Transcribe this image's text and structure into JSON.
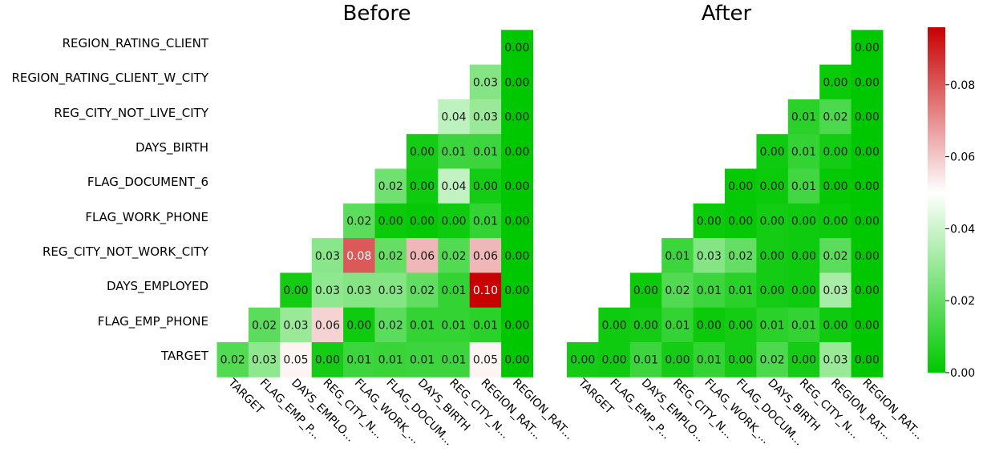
{
  "chart_data": {
    "type": "heatmap",
    "labels_full": [
      "TARGET",
      "FLAG_EMP_PHONE",
      "DAYS_EMPLOYED",
      "REG_CITY_NOT_WORK_CITY",
      "FLAG_WORK_PHONE",
      "FLAG_DOCUMENT_6",
      "DAYS_BIRTH",
      "REG_CITY_NOT_LIVE_CITY",
      "REGION_RATING_CLIENT_W_CITY",
      "REGION_RATING_CLIENT"
    ],
    "labels_short": [
      "TARGET",
      "FLAG_EMP_P...",
      "DAYS_EMPLO...",
      "REG_CITY_N...",
      "FLAG_WORK_...",
      "FLAG_DOCUM...",
      "DAYS_BIRTH",
      "REG_CITY_N...",
      "REGION_RAT...",
      "REGION_RAT..."
    ],
    "colorscale": [
      "#00c800",
      "#ffffff",
      "#c80000"
    ],
    "vmin": 0,
    "vmax": 0.096,
    "colorbar_ticks": [
      "0.00",
      "0.02",
      "0.04",
      "0.06",
      "0.08"
    ],
    "panels": [
      {
        "title": "Before",
        "rows": [
          [
            "0.00"
          ],
          [
            "0.03",
            "0.00"
          ],
          [
            "0.04",
            "0.03",
            "0.00"
          ],
          [
            "0.00",
            "0.01",
            "0.01",
            "0.00"
          ],
          [
            "0.02",
            "0.00",
            "0.04",
            "0.00",
            "0.00"
          ],
          [
            "0.02",
            "0.00",
            "0.00",
            "0.00",
            "0.01",
            "0.00"
          ],
          [
            "0.03",
            "0.08",
            "0.02",
            "0.06",
            "0.02",
            "0.06",
            "0.00"
          ],
          [
            "0.00",
            "0.03",
            "0.03",
            "0.03",
            "0.02",
            "0.01",
            "0.10",
            "0.00"
          ],
          [
            "0.02",
            "0.03",
            "0.06",
            "0.00",
            "0.02",
            "0.01",
            "0.01",
            "0.01",
            "0.00"
          ],
          [
            "0.02",
            "0.03",
            "0.05",
            "0.00",
            "0.01",
            "0.01",
            "0.01",
            "0.01",
            "0.05",
            "0.00"
          ]
        ],
        "values": [
          [
            0.0
          ],
          [
            0.026,
            0.0
          ],
          [
            0.037,
            0.03,
            0.0
          ],
          [
            0.004,
            0.012,
            0.012,
            0.0
          ],
          [
            0.022,
            0.003,
            0.038,
            0.004,
            0.0
          ],
          [
            0.018,
            0.002,
            0.001,
            0.003,
            0.01,
            0.0
          ],
          [
            0.027,
            0.08,
            0.02,
            0.063,
            0.016,
            0.063,
            0.0
          ],
          [
            0.004,
            0.028,
            0.026,
            0.026,
            0.019,
            0.01,
            0.096,
            0.0
          ],
          [
            0.018,
            0.03,
            0.058,
            0.003,
            0.018,
            0.01,
            0.01,
            0.008,
            0.0
          ],
          [
            0.016,
            0.028,
            0.052,
            0.004,
            0.012,
            0.011,
            0.012,
            0.012,
            0.052,
            0.0
          ]
        ]
      },
      {
        "title": "After",
        "rows": [
          [
            "0.00"
          ],
          [
            "0.00",
            "0.00"
          ],
          [
            "0.01",
            "0.02",
            "0.00"
          ],
          [
            "0.00",
            "0.01",
            "0.00",
            "0.00"
          ],
          [
            "0.00",
            "0.00",
            "0.01",
            "0.00",
            "0.00"
          ],
          [
            "0.00",
            "0.00",
            "0.00",
            "0.00",
            "0.00",
            "0.00"
          ],
          [
            "0.01",
            "0.03",
            "0.02",
            "0.00",
            "0.00",
            "0.02",
            "0.00"
          ],
          [
            "0.00",
            "0.02",
            "0.01",
            "0.01",
            "0.00",
            "0.00",
            "0.03",
            "0.00"
          ],
          [
            "0.00",
            "0.00",
            "0.01",
            "0.00",
            "0.00",
            "0.01",
            "0.01",
            "0.00",
            "0.00"
          ],
          [
            "0.00",
            "0.00",
            "0.01",
            "0.00",
            "0.01",
            "0.00",
            "0.02",
            "0.00",
            "0.03",
            "0.00"
          ]
        ],
        "values": [
          [
            0.0
          ],
          [
            0.002,
            0.0
          ],
          [
            0.008,
            0.015,
            0.0
          ],
          [
            0.003,
            0.01,
            0.004,
            0.0
          ],
          [
            0.001,
            0.002,
            0.013,
            0.001,
            0.0
          ],
          [
            0.002,
            0.001,
            0.004,
            0.003,
            0.002,
            0.0
          ],
          [
            0.012,
            0.026,
            0.02,
            0.004,
            0.003,
            0.018,
            0.0
          ],
          [
            0.002,
            0.016,
            0.012,
            0.008,
            0.004,
            0.003,
            0.033,
            0.0
          ],
          [
            0.003,
            0.004,
            0.01,
            0.002,
            0.004,
            0.008,
            0.01,
            0.003,
            0.0
          ],
          [
            0.004,
            0.003,
            0.012,
            0.004,
            0.01,
            0.004,
            0.015,
            0.004,
            0.03,
            0.0
          ]
        ]
      }
    ]
  }
}
